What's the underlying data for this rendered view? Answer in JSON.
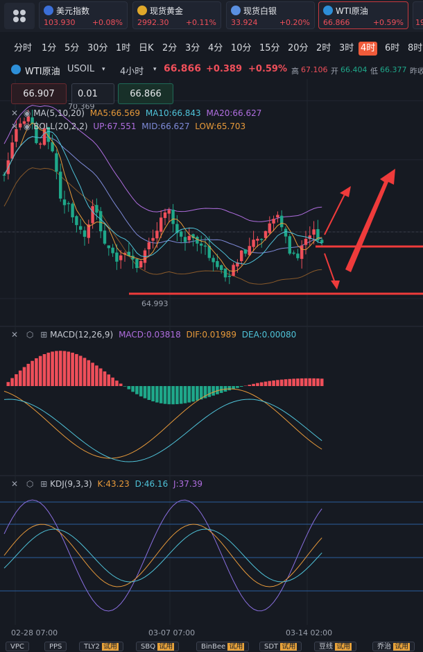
{
  "tickers": [
    {
      "name": "美元指数",
      "price": "103.930",
      "change": "+0.08%",
      "icon": "us-flag-icon",
      "color": "#3b6fd8"
    },
    {
      "name": "现货黄金",
      "price": "2992.30",
      "change": "+0.11%",
      "icon": "gold-icon",
      "color": "#e0a82a"
    },
    {
      "name": "现货白银",
      "price": "33.924",
      "change": "+0.20%",
      "icon": "silver-icon",
      "color": "#5a8fe0"
    },
    {
      "name": "WTI原油",
      "price": "66.866",
      "change": "+0.59%",
      "icon": "oil-icon",
      "color": "#2d8fd8"
    }
  ],
  "ticker_overflow": "19",
  "periods": [
    "分时",
    "1分",
    "5分",
    "30分",
    "1时",
    "日K",
    "2分",
    "3分",
    "4分",
    "10分",
    "15分",
    "20分",
    "2时",
    "3时",
    "4时",
    "6时",
    "8时"
  ],
  "active_period": "4时",
  "symbol": {
    "name": "WTI原油",
    "code": "USOIL",
    "interval": "4小时",
    "price": "66.866",
    "change": "+0.389",
    "percent": "+0.59%",
    "high_label": "高",
    "high": "67.106",
    "open_label": "开",
    "open": "66.404",
    "low_label": "低",
    "low": "66.377",
    "prev_label": "昨收"
  },
  "order": {
    "left_price": "66.907",
    "lot": "0.01",
    "right_price": "66.866"
  },
  "indicators": {
    "ma": {
      "label": "MA(5,10,20)",
      "ma5": "MA5:66.569",
      "ma10": "MA10:66.843",
      "ma20": "MA20:66.627"
    },
    "boll": {
      "label": "BOLL(20,2,2)",
      "up": "UP:67.551",
      "mid": "MID:66.627",
      "low": "LOW:65.703"
    },
    "macd": {
      "label": "MACD(12,26,9)",
      "macd": "MACD:0.03818",
      "dif": "DIF:0.01989",
      "dea": "DEA:0.00080"
    },
    "kdj": {
      "label": "KDJ(9,3,3)",
      "k": "K:43.23",
      "d": "D:46.16",
      "j": "J:37.39"
    }
  },
  "annotations": {
    "high": "70.369",
    "low": "64.993"
  },
  "xaxis": [
    "02-28 07:00",
    "03-07 07:00",
    "03-14 02:00"
  ],
  "footer_tabs": [
    {
      "label": "VPC",
      "tag": ""
    },
    {
      "label": "PPS",
      "tag": ""
    },
    {
      "label": "TLY2",
      "tag": "试用"
    },
    {
      "label": "SBQ",
      "tag": "试用"
    },
    {
      "label": "BinBee",
      "tag": "试用"
    },
    {
      "label": "SDT",
      "tag": "试用"
    },
    {
      "label": "豆线",
      "tag": "试用"
    },
    {
      "label": "乔治",
      "tag": "试用"
    }
  ],
  "colors": {
    "up": "#ef4f5a",
    "down": "#1fa88a",
    "ma5": "#e89a3a",
    "ma10": "#4fc3d9",
    "ma20": "#b06ee0",
    "active": "#f05b3a"
  }
}
